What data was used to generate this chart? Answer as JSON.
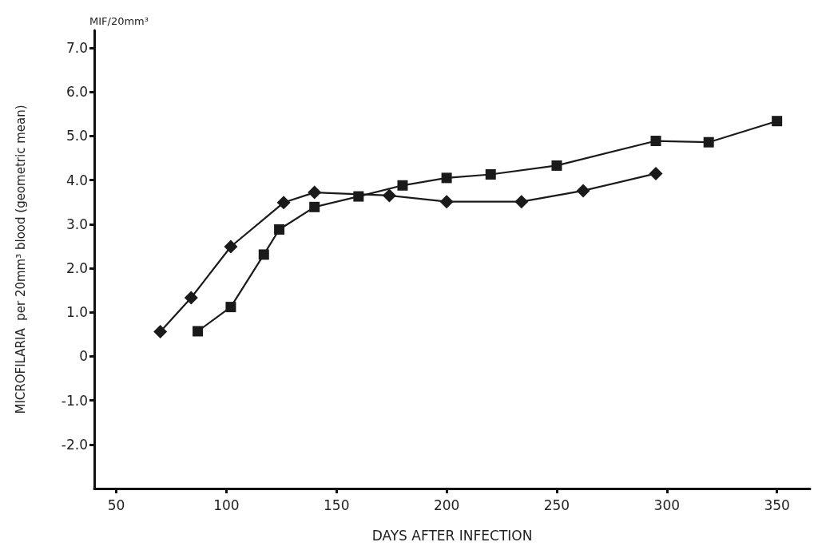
{
  "chart_data": {
    "type": "line",
    "xlabel": "DAYS AFTER INFECTION",
    "ylabel": "MICROFILARIA  per 20mm³ blood (geometric mean)",
    "annotations": [
      "MIF/20mm³"
    ],
    "xlim": [
      40,
      365
    ],
    "xticks": [
      50,
      100,
      150,
      200,
      250,
      300,
      350
    ],
    "ylim": [
      -3,
      7.4
    ],
    "yticks": [
      {
        "value": -2,
        "label": "-2.0"
      },
      {
        "value": -1,
        "label": "-1.0"
      },
      0,
      {
        "value": 1,
        "label": "1.0"
      },
      {
        "value": 2,
        "label": "2.0"
      },
      {
        "value": 3,
        "label": "3.0"
      },
      {
        "value": 4,
        "label": "4.0"
      },
      {
        "value": 5,
        "label": "5.0"
      },
      {
        "value": 6,
        "label": "6.0"
      },
      {
        "value": 7,
        "label": "7.0"
      }
    ],
    "grid": false,
    "line_style": "solid",
    "series": [
      {
        "color": "#1a1a1a",
        "marker": "diamond",
        "x": [
          70,
          84,
          102,
          126,
          140,
          174,
          200,
          234,
          262,
          295
        ],
        "values": [
          0.56,
          1.33,
          2.49,
          3.49,
          3.72,
          3.65,
          3.51,
          3.51,
          3.76,
          4.15
        ]
      },
      {
        "color": "#1a1a1a",
        "marker": "square",
        "x": [
          87,
          102,
          117,
          124,
          140,
          160,
          180,
          200,
          220,
          250,
          295,
          319,
          350
        ],
        "values": [
          0.57,
          1.12,
          2.31,
          2.88,
          3.39,
          3.63,
          3.88,
          4.05,
          4.13,
          4.33,
          4.89,
          4.86,
          5.34
        ]
      }
    ]
  }
}
